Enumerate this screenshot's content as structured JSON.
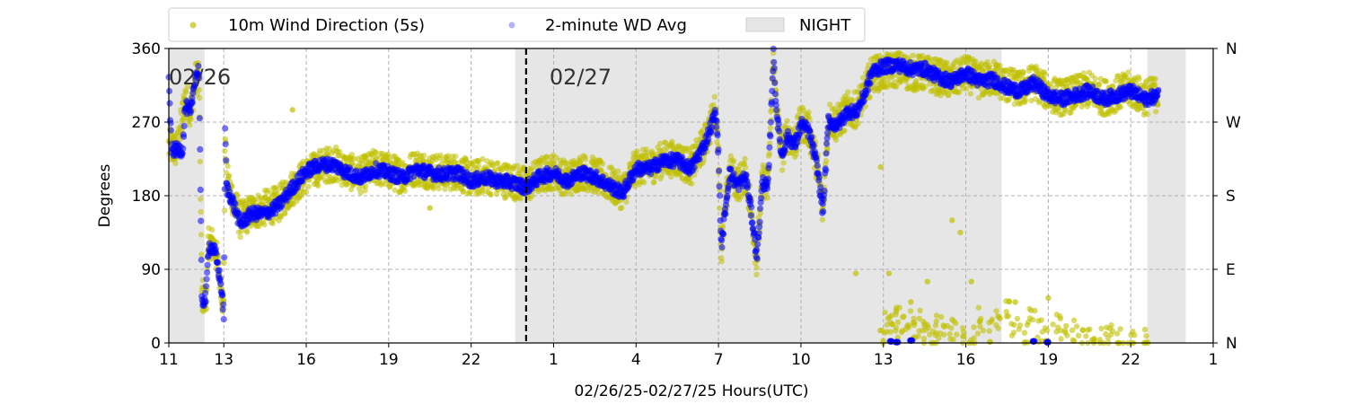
{
  "chart_data": {
    "type": "scatter",
    "xlabel": "02/26/25-02/27/25  Hours(UTC)",
    "ylabel": "Degrees",
    "x_range_hours": [
      11,
      49
    ],
    "ylim": [
      0,
      360
    ],
    "grid": true,
    "legend_position": "top",
    "x_ticks": [
      {
        "hour": 11,
        "label": "11"
      },
      {
        "hour": 13,
        "label": "13"
      },
      {
        "hour": 16,
        "label": "16"
      },
      {
        "hour": 19,
        "label": "19"
      },
      {
        "hour": 22,
        "label": "22"
      },
      {
        "hour": 25,
        "label": "1"
      },
      {
        "hour": 28,
        "label": "4"
      },
      {
        "hour": 31,
        "label": "7"
      },
      {
        "hour": 34,
        "label": "10"
      },
      {
        "hour": 37,
        "label": "13"
      },
      {
        "hour": 40,
        "label": "16"
      },
      {
        "hour": 43,
        "label": "19"
      },
      {
        "hour": 46,
        "label": "22"
      },
      {
        "hour": 49,
        "label": "1"
      }
    ],
    "y_ticks": [
      {
        "value": 0,
        "label": "0"
      },
      {
        "value": 90,
        "label": "90"
      },
      {
        "value": 180,
        "label": "180"
      },
      {
        "value": 270,
        "label": "270"
      },
      {
        "value": 360,
        "label": "360"
      }
    ],
    "y_ticks_right": [
      {
        "value": 0,
        "label": "N"
      },
      {
        "value": 90,
        "label": "E"
      },
      {
        "value": 180,
        "label": "S"
      },
      {
        "value": 270,
        "label": "W"
      },
      {
        "value": 360,
        "label": "N"
      }
    ],
    "night_bands": [
      [
        11.0,
        12.3
      ],
      [
        23.6,
        41.3
      ],
      [
        46.6,
        48.0
      ]
    ],
    "midnight_line_hour": 24.0,
    "date_labels": [
      {
        "text": "02/26",
        "hour": 11.0
      },
      {
        "text": "02/27",
        "hour": 24.85
      }
    ],
    "legend": [
      {
        "label": "10m Wind Direction (5s)",
        "kind": "marker",
        "color": "#bfbf00"
      },
      {
        "label": "2-minute WD Avg",
        "kind": "marker",
        "color": "#0000ff"
      },
      {
        "label": "NIGHT",
        "kind": "patch",
        "color": "#e6e6e6"
      }
    ],
    "series": [
      {
        "name": "10m Wind Direction (5s)",
        "color": "#bfbf00",
        "spread": 22,
        "points": [
          [
            11.0,
            240
          ],
          [
            11.3,
            236
          ],
          [
            11.6,
            300
          ],
          [
            11.8,
            285
          ],
          [
            11.95,
            320
          ],
          [
            12.1,
            330
          ],
          [
            12.2,
            60
          ],
          [
            12.35,
            50
          ],
          [
            12.45,
            125
          ],
          [
            12.7,
            115
          ],
          [
            12.8,
            90
          ],
          [
            12.9,
            75
          ],
          [
            13.0,
            40
          ],
          [
            13.05,
            260
          ],
          [
            13.1,
            200
          ],
          [
            13.3,
            180
          ],
          [
            13.6,
            150
          ],
          [
            14.0,
            160
          ],
          [
            14.5,
            165
          ],
          [
            15.0,
            170
          ],
          [
            15.5,
            190
          ],
          [
            16.0,
            205
          ],
          [
            16.5,
            215
          ],
          [
            17.0,
            220
          ],
          [
            17.5,
            210
          ],
          [
            18.0,
            205
          ],
          [
            18.5,
            215
          ],
          [
            19.0,
            210
          ],
          [
            19.5,
            205
          ],
          [
            20.0,
            215
          ],
          [
            20.5,
            210
          ],
          [
            21.0,
            208
          ],
          [
            21.5,
            210
          ],
          [
            22.0,
            200
          ],
          [
            22.5,
            205
          ],
          [
            23.0,
            200
          ],
          [
            23.5,
            198
          ],
          [
            24.0,
            193
          ],
          [
            24.5,
            205
          ],
          [
            25.0,
            210
          ],
          [
            25.5,
            200
          ],
          [
            26.0,
            210
          ],
          [
            26.5,
            205
          ],
          [
            27.0,
            195
          ],
          [
            27.5,
            185
          ],
          [
            28.0,
            215
          ],
          [
            28.5,
            215
          ],
          [
            29.0,
            225
          ],
          [
            29.5,
            225
          ],
          [
            30.0,
            215
          ],
          [
            30.5,
            245
          ],
          [
            30.9,
            285
          ],
          [
            31.0,
            235
          ],
          [
            31.1,
            110
          ],
          [
            31.2,
            150
          ],
          [
            31.4,
            210
          ],
          [
            31.7,
            195
          ],
          [
            32.0,
            205
          ],
          [
            32.2,
            160
          ],
          [
            32.4,
            100
          ],
          [
            32.6,
            200
          ],
          [
            32.8,
            190
          ],
          [
            33.0,
            355
          ],
          [
            33.1,
            290
          ],
          [
            33.3,
            230
          ],
          [
            33.5,
            255
          ],
          [
            33.8,
            245
          ],
          [
            34.0,
            270
          ],
          [
            34.3,
            260
          ],
          [
            34.6,
            215
          ],
          [
            34.8,
            160
          ],
          [
            35.0,
            275
          ],
          [
            35.3,
            268
          ],
          [
            35.7,
            285
          ],
          [
            36.0,
            285
          ],
          [
            36.3,
            305
          ],
          [
            36.6,
            330
          ],
          [
            37.0,
            330
          ],
          [
            37.5,
            335
          ],
          [
            38.0,
            330
          ],
          [
            38.5,
            330
          ],
          [
            39.0,
            325
          ],
          [
            39.5,
            320
          ],
          [
            40.0,
            330
          ],
          [
            40.5,
            320
          ],
          [
            41.0,
            325
          ],
          [
            41.5,
            315
          ],
          [
            42.0,
            310
          ],
          [
            42.5,
            320
          ],
          [
            43.0,
            305
          ],
          [
            43.5,
            300
          ],
          [
            44.0,
            305
          ],
          [
            44.5,
            310
          ],
          [
            45.0,
            300
          ],
          [
            45.5,
            305
          ],
          [
            46.0,
            310
          ],
          [
            46.5,
            300
          ],
          [
            47.0,
            305
          ]
        ]
      },
      {
        "name": "2-minute WD Avg",
        "color": "#0000ff",
        "spread": 8,
        "points": [
          [
            11.0,
            318
          ],
          [
            11.1,
            236
          ],
          [
            11.5,
            236
          ],
          [
            11.6,
            290
          ],
          [
            11.8,
            280
          ],
          [
            11.95,
            325
          ],
          [
            12.1,
            335
          ],
          [
            12.2,
            50
          ],
          [
            12.35,
            55
          ],
          [
            12.45,
            120
          ],
          [
            12.7,
            110
          ],
          [
            12.8,
            90
          ],
          [
            12.9,
            70
          ],
          [
            13.0,
            35
          ],
          [
            13.05,
            265
          ],
          [
            13.1,
            190
          ],
          [
            13.3,
            175
          ],
          [
            13.6,
            145
          ],
          [
            14.0,
            158
          ],
          [
            14.5,
            158
          ],
          [
            15.0,
            168
          ],
          [
            15.5,
            190
          ],
          [
            16.0,
            210
          ],
          [
            16.5,
            218
          ],
          [
            17.0,
            218
          ],
          [
            17.5,
            208
          ],
          [
            18.0,
            202
          ],
          [
            18.5,
            212
          ],
          [
            19.0,
            208
          ],
          [
            19.5,
            202
          ],
          [
            20.0,
            212
          ],
          [
            20.5,
            208
          ],
          [
            21.0,
            206
          ],
          [
            21.5,
            208
          ],
          [
            22.0,
            198
          ],
          [
            22.5,
            202
          ],
          [
            23.0,
            198
          ],
          [
            23.5,
            196
          ],
          [
            24.0,
            190
          ],
          [
            24.5,
            203
          ],
          [
            25.0,
            208
          ],
          [
            25.5,
            198
          ],
          [
            26.0,
            208
          ],
          [
            26.5,
            203
          ],
          [
            27.0,
            193
          ],
          [
            27.5,
            183
          ],
          [
            28.0,
            213
          ],
          [
            28.5,
            213
          ],
          [
            29.0,
            223
          ],
          [
            29.5,
            223
          ],
          [
            30.0,
            213
          ],
          [
            30.5,
            243
          ],
          [
            30.9,
            282
          ],
          [
            31.0,
            232
          ],
          [
            31.1,
            115
          ],
          [
            31.2,
            148
          ],
          [
            31.4,
            208
          ],
          [
            31.7,
            193
          ],
          [
            32.0,
            203
          ],
          [
            32.2,
            158
          ],
          [
            32.4,
            105
          ],
          [
            32.6,
            198
          ],
          [
            32.8,
            188
          ],
          [
            33.0,
            352
          ],
          [
            33.1,
            288
          ],
          [
            33.3,
            228
          ],
          [
            33.5,
            252
          ],
          [
            33.8,
            243
          ],
          [
            34.0,
            268
          ],
          [
            34.3,
            258
          ],
          [
            34.6,
            213
          ],
          [
            34.8,
            160
          ],
          [
            35.0,
            272
          ],
          [
            35.3,
            265
          ],
          [
            35.7,
            283
          ],
          [
            36.0,
            282
          ],
          [
            36.3,
            302
          ],
          [
            36.6,
            332
          ],
          [
            37.0,
            338
          ],
          [
            37.5,
            340
          ],
          [
            38.0,
            335
          ],
          [
            38.5,
            335
          ],
          [
            39.0,
            325
          ],
          [
            39.5,
            320
          ],
          [
            40.0,
            330
          ],
          [
            40.5,
            320
          ],
          [
            41.0,
            322
          ],
          [
            41.5,
            312
          ],
          [
            42.0,
            308
          ],
          [
            42.5,
            318
          ],
          [
            43.0,
            302
          ],
          [
            43.5,
            298
          ],
          [
            44.0,
            303
          ],
          [
            44.5,
            308
          ],
          [
            45.0,
            298
          ],
          [
            45.5,
            303
          ],
          [
            46.0,
            308
          ],
          [
            46.5,
            298
          ],
          [
            47.0,
            302
          ]
        ]
      }
    ],
    "low_wrap_points": [
      [
        37.0,
        10
      ],
      [
        37.2,
        25
      ],
      [
        37.4,
        15
      ],
      [
        37.6,
        30
      ],
      [
        37.8,
        20
      ],
      [
        38.0,
        35
      ],
      [
        38.2,
        15
      ],
      [
        38.4,
        25
      ],
      [
        38.6,
        10
      ],
      [
        38.8,
        5
      ],
      [
        39.0,
        20
      ],
      [
        39.3,
        10
      ],
      [
        39.6,
        15
      ],
      [
        40.0,
        5
      ],
      [
        40.3,
        10
      ],
      [
        40.6,
        30
      ],
      [
        40.9,
        15
      ],
      [
        41.2,
        25
      ],
      [
        41.5,
        40
      ],
      [
        41.8,
        20
      ],
      [
        42.1,
        10
      ],
      [
        42.4,
        30
      ],
      [
        42.7,
        15
      ],
      [
        43.0,
        5
      ],
      [
        43.3,
        20
      ],
      [
        43.6,
        10
      ],
      [
        44.0,
        15
      ],
      [
        44.3,
        5
      ],
      [
        44.6,
        10
      ],
      [
        45.0,
        5
      ],
      [
        45.3,
        8
      ],
      [
        45.6,
        3
      ],
      [
        46.0,
        5
      ],
      [
        46.5,
        2
      ]
    ],
    "low_wrap_avg": [
      [
        37.3,
        2
      ],
      [
        37.5,
        1
      ],
      [
        38.0,
        3
      ],
      [
        42.5,
        2
      ],
      [
        43.0,
        1
      ]
    ],
    "outliers": [
      [
        36.0,
        85
      ],
      [
        36.9,
        215
      ],
      [
        37.2,
        85
      ],
      [
        38.0,
        50
      ],
      [
        38.6,
        75
      ],
      [
        39.5,
        150
      ],
      [
        39.8,
        135
      ],
      [
        40.2,
        75
      ],
      [
        41.8,
        50
      ],
      [
        43.0,
        55
      ],
      [
        20.5,
        165
      ],
      [
        15.5,
        285
      ]
    ]
  }
}
